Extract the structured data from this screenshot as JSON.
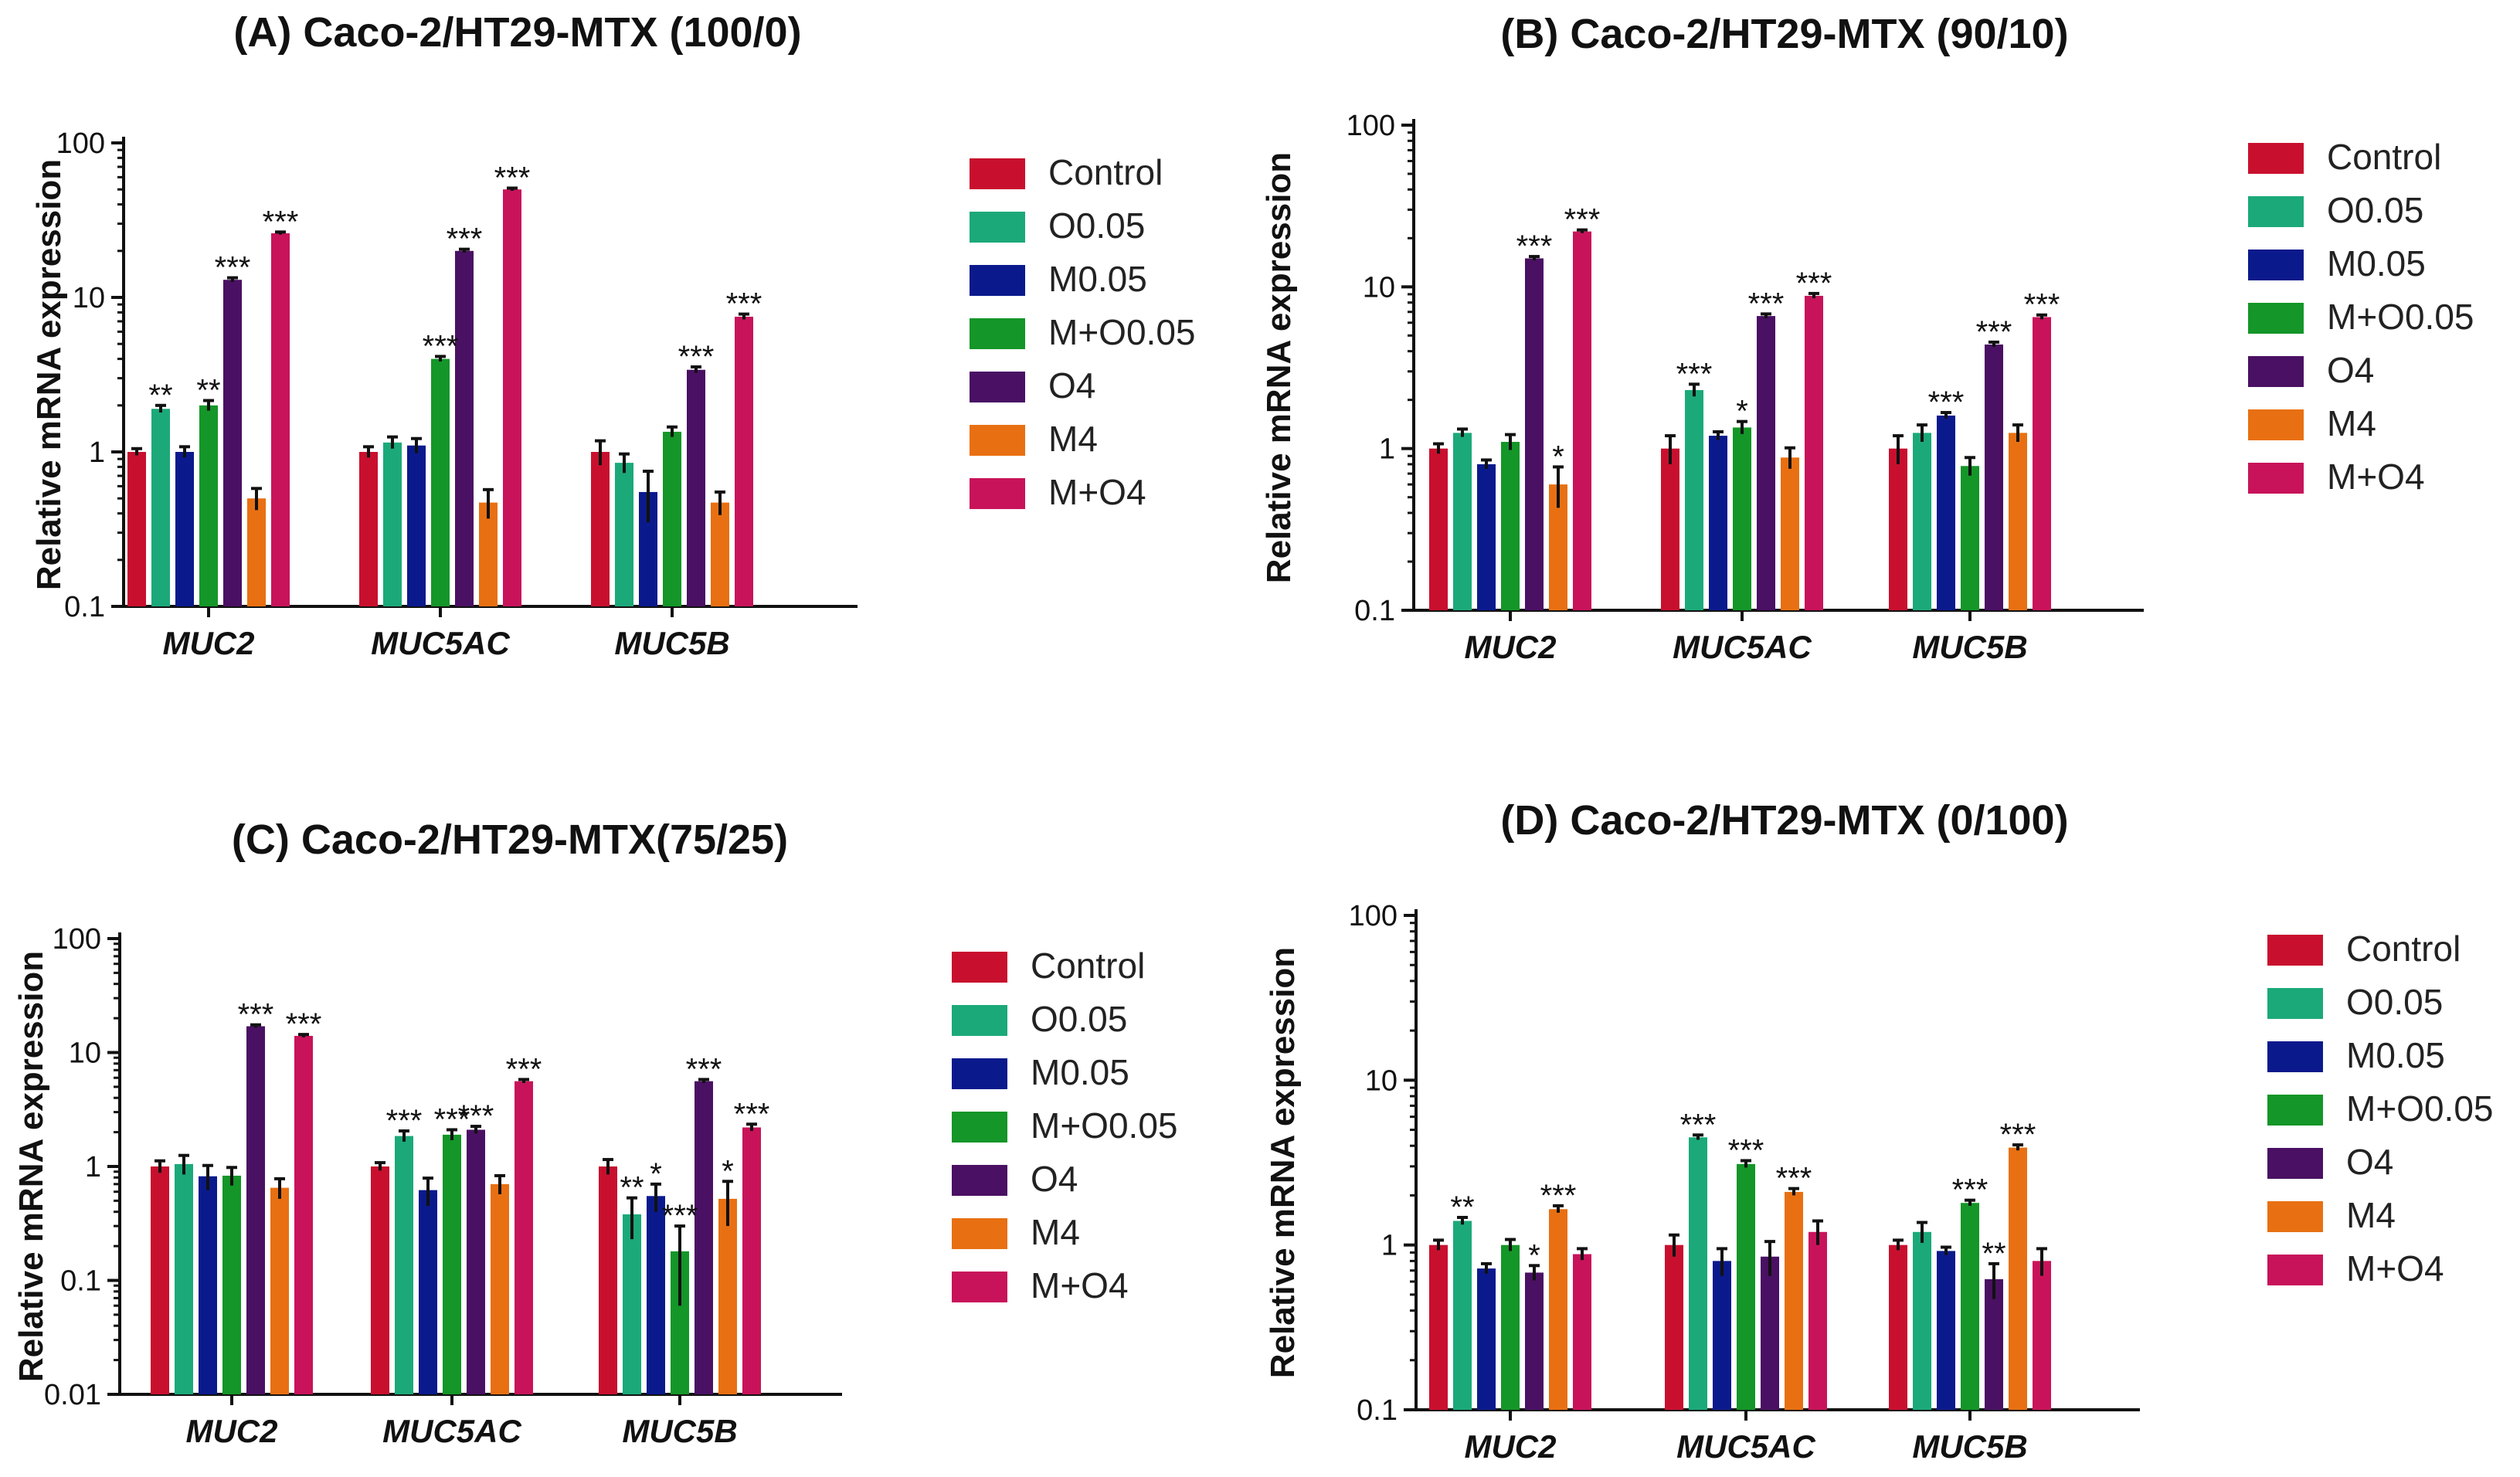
{
  "legend_labels": [
    "Control",
    "O0.05",
    "M0.05",
    "M+O0.05",
    "O4",
    "M4",
    "M+O4"
  ],
  "colors": [
    "#c8102e",
    "#1ba97a",
    "#0a1a8c",
    "#149628",
    "#4a1063",
    "#e87012",
    "#c8135a"
  ],
  "chart_data": [
    {
      "type": "bar",
      "title": "(A) Caco-2/HT29-MTX (100/0)",
      "ylabel": "Relative mRNA expression",
      "yscale": "log",
      "ylim": [
        0.1,
        100
      ],
      "yticks": [
        "0.1",
        "1",
        "10",
        "100"
      ],
      "categories": [
        "MUC2",
        "MUC5AC",
        "MUC5B"
      ],
      "legend_position": "right",
      "series": [
        {
          "name": "Control",
          "values": [
            1.0,
            1.0,
            1.0
          ],
          "errors": [
            0.05,
            0.08,
            0.18
          ]
        },
        {
          "name": "O0.05",
          "values": [
            1.9,
            1.15,
            0.85
          ],
          "errors": [
            0.1,
            0.1,
            0.12
          ]
        },
        {
          "name": "M0.05",
          "values": [
            1.0,
            1.1,
            0.55
          ],
          "errors": [
            0.08,
            0.12,
            0.2
          ]
        },
        {
          "name": "M+O0.05",
          "values": [
            2.0,
            4.0,
            1.35
          ],
          "errors": [
            0.15,
            0.15,
            0.1
          ]
        },
        {
          "name": "O4",
          "values": [
            13,
            20,
            3.4
          ],
          "errors": [
            0.4,
            0.5,
            0.15
          ]
        },
        {
          "name": "M4",
          "values": [
            0.5,
            0.47,
            0.47
          ],
          "errors": [
            0.08,
            0.1,
            0.08
          ]
        },
        {
          "name": "M+O4",
          "values": [
            26,
            50,
            7.5
          ],
          "errors": [
            0.5,
            1.0,
            0.3
          ]
        }
      ],
      "significance": [
        {
          "category": 0,
          "series": 1,
          "label": "**"
        },
        {
          "category": 0,
          "series": 3,
          "label": "**"
        },
        {
          "category": 0,
          "series": 4,
          "label": "***"
        },
        {
          "category": 0,
          "series": 6,
          "label": "***"
        },
        {
          "category": 1,
          "series": 3,
          "label": "***"
        },
        {
          "category": 1,
          "series": 4,
          "label": "***"
        },
        {
          "category": 1,
          "series": 6,
          "label": "***"
        },
        {
          "category": 2,
          "series": 4,
          "label": "***"
        },
        {
          "category": 2,
          "series": 6,
          "label": "***"
        }
      ]
    },
    {
      "type": "bar",
      "title": "(B) Caco-2/HT29-MTX (90/10)",
      "ylabel": "Relative mRNA expression",
      "yscale": "log",
      "ylim": [
        0.1,
        100
      ],
      "yticks": [
        "0.1",
        "1",
        "10",
        "100"
      ],
      "categories": [
        "MUC2",
        "MUC5AC",
        "MUC5B"
      ],
      "legend_position": "right",
      "series": [
        {
          "name": "Control",
          "values": [
            1.0,
            1.0,
            1.0
          ],
          "errors": [
            0.07,
            0.2,
            0.2
          ]
        },
        {
          "name": "O0.05",
          "values": [
            1.25,
            2.3,
            1.25
          ],
          "errors": [
            0.07,
            0.2,
            0.15
          ]
        },
        {
          "name": "M0.05",
          "values": [
            0.8,
            1.2,
            1.6
          ],
          "errors": [
            0.05,
            0.07,
            0.07
          ]
        },
        {
          "name": "M+O0.05",
          "values": [
            1.1,
            1.35,
            0.78
          ],
          "errors": [
            0.12,
            0.12,
            0.1
          ]
        },
        {
          "name": "O4",
          "values": [
            15,
            6.6,
            4.4
          ],
          "errors": [
            0.4,
            0.2,
            0.15
          ]
        },
        {
          "name": "M4",
          "values": [
            0.6,
            0.88,
            1.25
          ],
          "errors": [
            0.17,
            0.13,
            0.15
          ]
        },
        {
          "name": "M+O4",
          "values": [
            22,
            8.8,
            6.5
          ],
          "errors": [
            0.5,
            0.3,
            0.2
          ]
        }
      ],
      "significance": [
        {
          "category": 0,
          "series": 4,
          "label": "***"
        },
        {
          "category": 0,
          "series": 5,
          "label": "*"
        },
        {
          "category": 0,
          "series": 6,
          "label": "***"
        },
        {
          "category": 1,
          "series": 1,
          "label": "***"
        },
        {
          "category": 1,
          "series": 3,
          "label": "*"
        },
        {
          "category": 1,
          "series": 4,
          "label": "***"
        },
        {
          "category": 1,
          "series": 6,
          "label": "***"
        },
        {
          "category": 2,
          "series": 2,
          "label": "***"
        },
        {
          "category": 2,
          "series": 4,
          "label": "***"
        },
        {
          "category": 2,
          "series": 6,
          "label": "***"
        }
      ]
    },
    {
      "type": "bar",
      "title": "(C) Caco-2/HT29-MTX(75/25)",
      "ylabel": "Relative mRNA expression",
      "yscale": "log",
      "ylim": [
        0.01,
        100
      ],
      "yticks": [
        "0.01",
        "0.1",
        "1",
        "10",
        "100"
      ],
      "categories": [
        "MUC2",
        "MUC5AC",
        "MUC5B"
      ],
      "legend_position": "right",
      "series": [
        {
          "name": "Control",
          "values": [
            1.0,
            1.0,
            1.0
          ],
          "errors": [
            0.12,
            0.08,
            0.15
          ]
        },
        {
          "name": "O0.05",
          "values": [
            1.05,
            1.85,
            0.38
          ],
          "errors": [
            0.2,
            0.2,
            0.15
          ]
        },
        {
          "name": "M0.05",
          "values": [
            0.82,
            0.62,
            0.55
          ],
          "errors": [
            0.2,
            0.17,
            0.15
          ]
        },
        {
          "name": "M+O0.05",
          "values": [
            0.83,
            1.9,
            0.18
          ],
          "errors": [
            0.15,
            0.2,
            0.12
          ]
        },
        {
          "name": "O4",
          "values": [
            17,
            2.1,
            5.6
          ],
          "errors": [
            0.5,
            0.15,
            0.2
          ]
        },
        {
          "name": "M4",
          "values": [
            0.65,
            0.7,
            0.52
          ],
          "errors": [
            0.13,
            0.13,
            0.22
          ]
        },
        {
          "name": "M+O4",
          "values": [
            14,
            5.6,
            2.2
          ],
          "errors": [
            0.4,
            0.2,
            0.15
          ]
        }
      ],
      "significance": [
        {
          "category": 0,
          "series": 4,
          "label": "***"
        },
        {
          "category": 0,
          "series": 6,
          "label": "***"
        },
        {
          "category": 1,
          "series": 1,
          "label": "***"
        },
        {
          "category": 1,
          "series": 3,
          "label": "***"
        },
        {
          "category": 1,
          "series": 4,
          "label": "***"
        },
        {
          "category": 1,
          "series": 6,
          "label": "***"
        },
        {
          "category": 2,
          "series": 1,
          "label": "**"
        },
        {
          "category": 2,
          "series": 2,
          "label": "*"
        },
        {
          "category": 2,
          "series": 3,
          "label": "***"
        },
        {
          "category": 2,
          "series": 4,
          "label": "***"
        },
        {
          "category": 2,
          "series": 5,
          "label": "*"
        },
        {
          "category": 2,
          "series": 6,
          "label": "***"
        }
      ]
    },
    {
      "type": "bar",
      "title": "(D) Caco-2/HT29-MTX (0/100)",
      "ylabel": "Relative mRNA expression",
      "yscale": "log",
      "ylim": [
        0.1,
        100
      ],
      "yticks": [
        "0.1",
        "1",
        "10",
        "100"
      ],
      "categories": [
        "MUC2",
        "MUC5AC",
        "MUC5B"
      ],
      "legend_position": "right",
      "series": [
        {
          "name": "Control",
          "values": [
            1.0,
            1.0,
            1.0
          ],
          "errors": [
            0.07,
            0.15,
            0.07
          ]
        },
        {
          "name": "O0.05",
          "values": [
            1.4,
            4.5,
            1.2
          ],
          "errors": [
            0.07,
            0.15,
            0.17
          ]
        },
        {
          "name": "M0.05",
          "values": [
            0.72,
            0.8,
            0.92
          ],
          "errors": [
            0.05,
            0.15,
            0.05
          ]
        },
        {
          "name": "M+O0.05",
          "values": [
            1.0,
            3.1,
            1.8
          ],
          "errors": [
            0.08,
            0.15,
            0.07
          ]
        },
        {
          "name": "O4",
          "values": [
            0.68,
            0.85,
            0.62
          ],
          "errors": [
            0.07,
            0.2,
            0.15
          ]
        },
        {
          "name": "M4",
          "values": [
            1.65,
            2.1,
            3.9
          ],
          "errors": [
            0.08,
            0.1,
            0.15
          ]
        },
        {
          "name": "M+O4",
          "values": [
            0.88,
            1.2,
            0.8
          ],
          "errors": [
            0.07,
            0.2,
            0.15
          ]
        }
      ],
      "significance": [
        {
          "category": 0,
          "series": 1,
          "label": "**"
        },
        {
          "category": 0,
          "series": 4,
          "label": "*"
        },
        {
          "category": 0,
          "series": 5,
          "label": "***"
        },
        {
          "category": 1,
          "series": 1,
          "label": "***"
        },
        {
          "category": 1,
          "series": 3,
          "label": "***"
        },
        {
          "category": 1,
          "series": 5,
          "label": "***"
        },
        {
          "category": 2,
          "series": 3,
          "label": "***"
        },
        {
          "category": 2,
          "series": 4,
          "label": "**"
        },
        {
          "category": 2,
          "series": 5,
          "label": "***"
        }
      ]
    }
  ]
}
